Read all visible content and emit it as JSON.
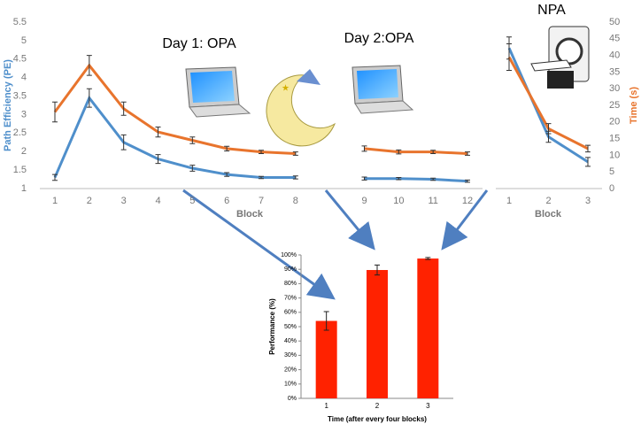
{
  "chart_data": [
    {
      "type": "line",
      "annotations": [
        "Day 1: OPA",
        "Day 2:OPA"
      ],
      "xlabel": "Block",
      "ylabel": "Path Efficiency (PE)",
      "y2label": "Time (s)",
      "categories": [
        "1",
        "2",
        "3",
        "4",
        "5",
        "6",
        "7",
        "8",
        null,
        "9",
        "10",
        "11",
        "12"
      ],
      "series": [
        {
          "color": "#4f8fcb",
          "axis": "y",
          "values": [
            1.3,
            3.45,
            2.25,
            1.8,
            1.55,
            1.38,
            1.3,
            1.3,
            null,
            1.27,
            1.27,
            1.25,
            1.2
          ],
          "errors": [
            0.08,
            0.25,
            0.2,
            0.12,
            0.08,
            0.05,
            0.03,
            0.04,
            null,
            0.04,
            0.03,
            0.03,
            0.03
          ]
        },
        {
          "color": "#e8742d",
          "axis": "y2",
          "values": [
            23,
            37,
            24,
            17,
            14.5,
            12,
            11,
            10.5,
            null,
            12,
            11,
            11,
            10.5
          ],
          "errors": [
            3,
            3,
            2,
            1.5,
            1,
            0.7,
            0.5,
            0.5,
            null,
            0.8,
            0.6,
            0.5,
            0.5
          ]
        }
      ],
      "ylim": [
        1,
        5.5
      ],
      "yticks": [
        1,
        1.5,
        2,
        2.5,
        3,
        3.5,
        4,
        4.5,
        5,
        5.5
      ],
      "y2lim": [
        0,
        50
      ],
      "y2ticks": [
        0,
        5,
        10,
        15,
        20,
        25,
        30,
        35,
        40,
        45,
        50
      ]
    },
    {
      "type": "line",
      "title": "NPA",
      "xlabel": "Block",
      "categories": [
        "1",
        "2",
        "3"
      ],
      "series": [
        {
          "color": "#4f8fcb",
          "axis": "y",
          "values": [
            4.8,
            2.4,
            1.72
          ],
          "errors": [
            0.3,
            0.15,
            0.12
          ]
        },
        {
          "color": "#e8742d",
          "axis": "y2",
          "values": [
            39.5,
            18,
            12
          ],
          "errors": [
            4,
            1.5,
            1
          ]
        }
      ]
    },
    {
      "type": "bar",
      "xlabel": "Time (after every four blocks)",
      "ylabel": "Performance (%)",
      "categories": [
        "1",
        "2",
        "3"
      ],
      "values": [
        54,
        89.5,
        97.5
      ],
      "errors": [
        6.5,
        3.5,
        0.7
      ],
      "color": "#ff2200",
      "ylim": [
        0,
        100
      ],
      "yticks": [
        {
          "value": 0,
          "label": "0%"
        },
        {
          "value": 10,
          "label": "10%"
        },
        {
          "value": 20,
          "label": "20%"
        },
        {
          "value": 30,
          "label": "30%"
        },
        {
          "value": 40,
          "label": "40%"
        },
        {
          "value": 50,
          "label": "50%"
        },
        {
          "value": 60,
          "label": "60%"
        },
        {
          "value": 70,
          "label": "70%"
        },
        {
          "value": 80,
          "label": "80%"
        },
        {
          "value": 90,
          "label": "90%"
        },
        {
          "value": 100,
          "label": "100%"
        }
      ]
    }
  ]
}
